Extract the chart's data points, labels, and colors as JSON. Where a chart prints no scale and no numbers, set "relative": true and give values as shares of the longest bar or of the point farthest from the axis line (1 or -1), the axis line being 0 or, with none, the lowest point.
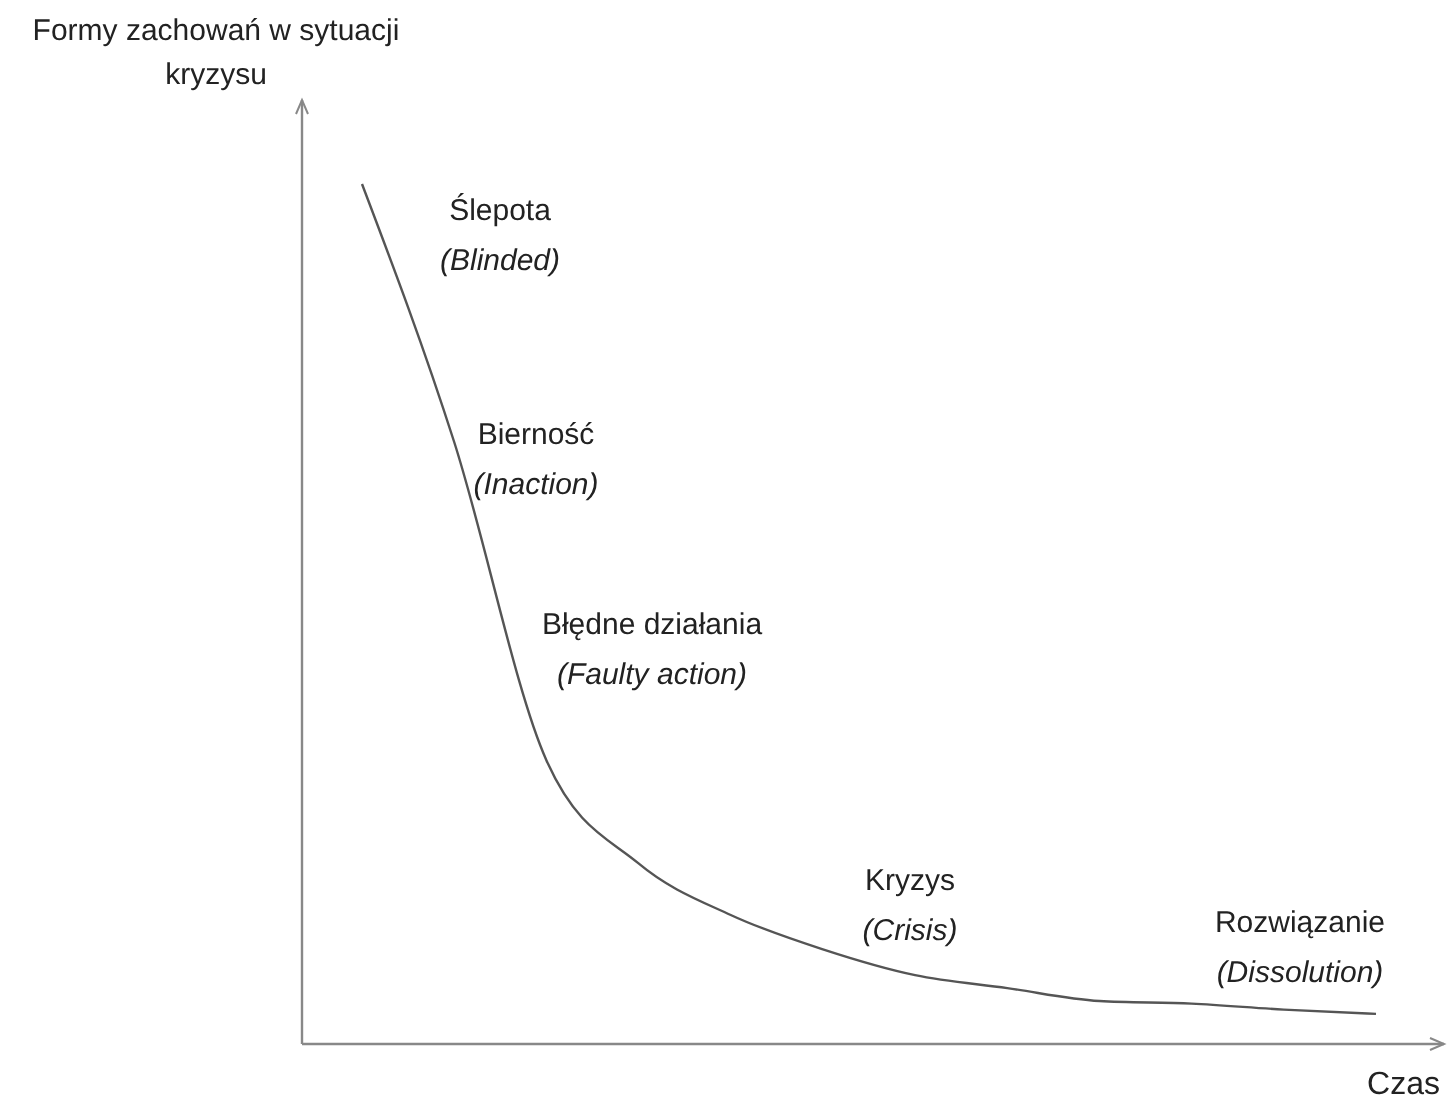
{
  "chart_data": {
    "type": "line",
    "relative": true,
    "ylabel": "Formy zachowań w sytuacji kryzysu",
    "xlabel": "Czas",
    "categories": [
      null,
      null,
      null,
      null,
      null,
      null,
      null,
      null,
      null,
      null,
      null,
      null
    ],
    "series": [
      {
        "color": "#555555",
        "values": [
          1,
          0.7,
          0.33,
          0.21,
          0.15,
          0.11,
          0.08,
          0.065,
          0.05,
          0.047,
          0.04,
          0.035
        ]
      }
    ],
    "annotations": [
      "Ślepota",
      "(Blinded)",
      "Bierność",
      "(Inaction)",
      "Błędne działania",
      "(Faulty action)",
      "Kryzys",
      "(Crisis)",
      "Rozwiązanie",
      "(Dissolution)"
    ],
    "tick_labels": false,
    "marker": "none",
    "line_style": "solid"
  }
}
